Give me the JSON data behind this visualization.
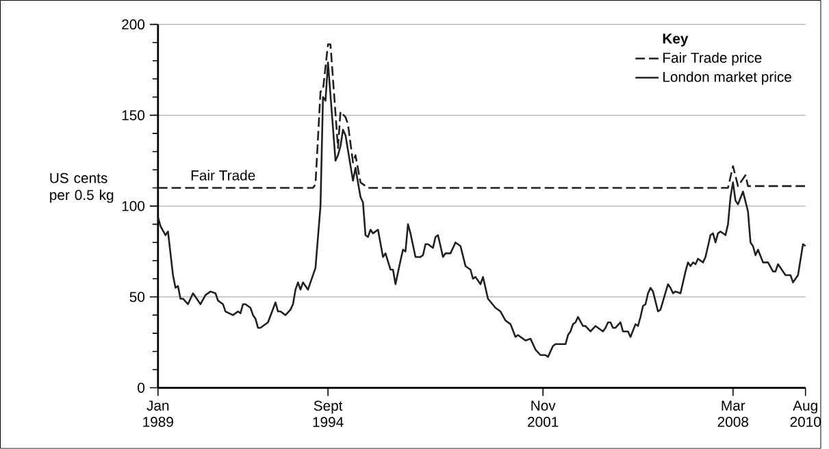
{
  "chart_data": {
    "type": "line",
    "ylabel": "US cents per 0.5 kg",
    "legend_title": "Key",
    "xlim": [
      "1989-01",
      "2010-08"
    ],
    "ylim": [
      0,
      200
    ],
    "xticks": [
      {
        "value": "1989-01",
        "label": "Jan 1989"
      },
      {
        "value": "1994-09",
        "label": "Sept 1994"
      },
      {
        "value": "2001-11",
        "label": "Nov 2001"
      },
      {
        "value": "2008-03",
        "label": "Mar 2008"
      },
      {
        "value": "2010-08",
        "label": "Aug 2010"
      }
    ],
    "yticks": [
      0,
      50,
      100,
      150,
      200
    ],
    "grid": "y",
    "legend": "top right",
    "marker": "none",
    "annotations": [
      {
        "text": "Fair Trade",
        "x": "1991-03",
        "y": 110
      }
    ],
    "series": [
      {
        "name": "Fair Trade price",
        "color": "#231f20",
        "line_style": "dashed",
        "x": [
          "1989-01",
          "1994-03",
          "1994-04",
          "1994-06",
          "1994-07",
          "1994-09",
          "1994-10",
          "1995-01",
          "1995-02",
          "1995-04",
          "1995-05",
          "1995-07",
          "1995-08",
          "1995-10",
          "1996-01",
          "2008-01",
          "2008-03",
          "2008-05",
          "2008-08",
          "2008-09",
          "2010-08"
        ],
        "values": [
          110,
          110,
          112,
          163,
          164,
          189,
          189,
          132,
          152,
          149,
          145,
          124,
          128,
          113,
          110,
          110,
          122,
          111,
          117,
          111,
          111
        ]
      },
      {
        "name": "London market price",
        "color": "#231f20",
        "line_style": "solid",
        "x": [
          "1989-01",
          "1989-02",
          "1989-04",
          "1989-05",
          "1989-07",
          "1989-08",
          "1989-09",
          "1989-10",
          "1989-11",
          "1990-01",
          "1990-03",
          "1990-04",
          "1990-06",
          "1990-08",
          "1990-10",
          "1990-12",
          "1991-01",
          "1991-03",
          "1991-04",
          "1991-07",
          "1991-09",
          "1991-10",
          "1991-11",
          "1991-12",
          "1992-02",
          "1992-03",
          "1992-04",
          "1992-05",
          "1992-06",
          "1992-07",
          "1992-09",
          "1992-12",
          "1993-01",
          "1993-02",
          "1993-04",
          "1993-06",
          "1993-07",
          "1993-08",
          "1993-09",
          "1993-10",
          "1993-11",
          "1994-01",
          "1994-04",
          "1994-06",
          "1994-07",
          "1994-08",
          "1994-09",
          "1994-12",
          "1995-01",
          "1995-02",
          "1995-03",
          "1995-04",
          "1995-07",
          "1995-08",
          "1995-10",
          "1995-11",
          "1995-12",
          "1996-01",
          "1996-02",
          "1996-03",
          "1996-05",
          "1996-07",
          "1996-08",
          "1996-10",
          "1996-11",
          "1996-12",
          "1997-02",
          "1997-03",
          "1997-04",
          "1997-05",
          "1997-06",
          "1997-08",
          "1997-10",
          "1997-11",
          "1997-12",
          "1998-01",
          "1998-03",
          "1998-04",
          "1998-05",
          "1998-07",
          "1998-08",
          "1998-10",
          "1998-12",
          "1999-02",
          "1999-04",
          "1999-06",
          "1999-07",
          "1999-08",
          "1999-10",
          "1999-11",
          "2000-01",
          "2000-04",
          "2000-06",
          "2000-08",
          "2000-10",
          "2000-12",
          "2001-01",
          "2001-04",
          "2001-06",
          "2001-08",
          "2001-10",
          "2001-12",
          "2002-01",
          "2002-03",
          "2002-04",
          "2002-05",
          "2002-08",
          "2002-09",
          "2002-10",
          "2002-11",
          "2002-12",
          "2003-01",
          "2003-03",
          "2003-04",
          "2003-06",
          "2003-08",
          "2003-11",
          "2003-12",
          "2004-01",
          "2004-02",
          "2004-03",
          "2004-04",
          "2004-06",
          "2004-07",
          "2004-09",
          "2004-10",
          "2004-12",
          "2005-01",
          "2005-02",
          "2005-03",
          "2005-04",
          "2005-05",
          "2005-06",
          "2005-07",
          "2005-09",
          "2005-10",
          "2006-01",
          "2006-02",
          "2006-03",
          "2006-04",
          "2006-06",
          "2006-08",
          "2006-09",
          "2006-10",
          "2006-11",
          "2006-12",
          "2007-01",
          "2007-03",
          "2007-04",
          "2007-06",
          "2007-07",
          "2007-08",
          "2007-09",
          "2007-10",
          "2007-12",
          "2008-01",
          "2008-02",
          "2008-03",
          "2008-04",
          "2008-05",
          "2008-07",
          "2008-09",
          "2008-10",
          "2008-11",
          "2008-12",
          "2009-01",
          "2009-03",
          "2009-05",
          "2009-07",
          "2009-08",
          "2009-09",
          "2009-10",
          "2009-12",
          "2010-02",
          "2010-03",
          "2010-05",
          "2010-07",
          "2010-08"
        ],
        "values": [
          94,
          89,
          84,
          86,
          62,
          55,
          56,
          49,
          49,
          46,
          52,
          50,
          46,
          51,
          53,
          52,
          48,
          46,
          42,
          40,
          42,
          41,
          46,
          46,
          44,
          40,
          38,
          33,
          33,
          34,
          36,
          47,
          42,
          42,
          40,
          43,
          46,
          54,
          58,
          54,
          58,
          54,
          66,
          100,
          160,
          158,
          179,
          125,
          128,
          133,
          142,
          139,
          114,
          121,
          105,
          102,
          84,
          83,
          87,
          85,
          87,
          72,
          74,
          65,
          65,
          57,
          70,
          76,
          75,
          90,
          85,
          72,
          72,
          73,
          79,
          79,
          77,
          83,
          84,
          72,
          74,
          74,
          80,
          78,
          67,
          65,
          60,
          61,
          57,
          61,
          49,
          44,
          42,
          37,
          35,
          28,
          29,
          26,
          27,
          21,
          18,
          18,
          17,
          23,
          24,
          24,
          24,
          29,
          31,
          35,
          36,
          39,
          34,
          34,
          31,
          34,
          31,
          33,
          36,
          36,
          33,
          33,
          36,
          31,
          31,
          28,
          35,
          34,
          39,
          45,
          46,
          52,
          55,
          53,
          42,
          43,
          57,
          55,
          52,
          53,
          52,
          64,
          69,
          67,
          69,
          68,
          71,
          69,
          72,
          84,
          85,
          80,
          85,
          86,
          84,
          90,
          105,
          113,
          103,
          101,
          108,
          97,
          80,
          78,
          73,
          76,
          69,
          69,
          64,
          64,
          68,
          66,
          62,
          62,
          58,
          62,
          79,
          78
        ]
      }
    ]
  }
}
